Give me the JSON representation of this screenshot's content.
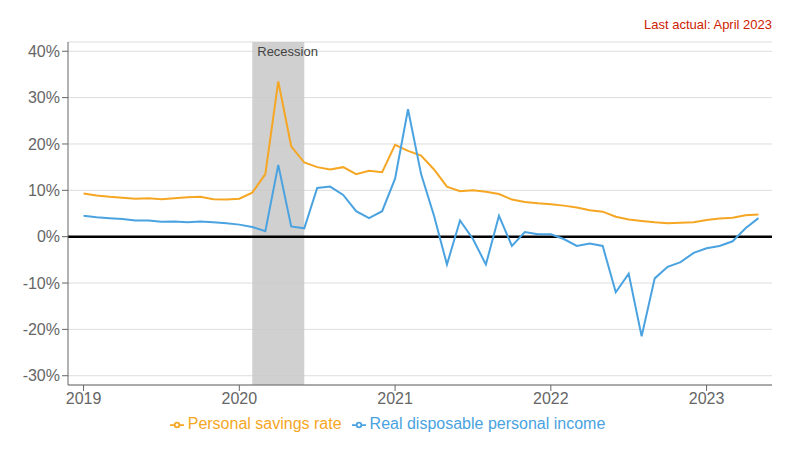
{
  "chart_data": {
    "type": "line",
    "annotations": [
      {
        "text": "Last actual:  April 2023",
        "color": "#CC2200"
      },
      {
        "text": "Recession",
        "x_start": 2020.083,
        "x_end": 2020.417
      }
    ],
    "hlines": [
      {
        "y": 0,
        "color": "#000000"
      }
    ],
    "x": [
      2019.0,
      2019.083,
      2019.167,
      2019.25,
      2019.333,
      2019.417,
      2019.5,
      2019.583,
      2019.667,
      2019.75,
      2019.833,
      2019.917,
      2020.0,
      2020.083,
      2020.167,
      2020.25,
      2020.333,
      2020.417,
      2020.5,
      2020.583,
      2020.667,
      2020.75,
      2020.833,
      2020.917,
      2021.0,
      2021.083,
      2021.167,
      2021.25,
      2021.333,
      2021.417,
      2021.5,
      2021.583,
      2021.667,
      2021.75,
      2021.833,
      2021.917,
      2022.0,
      2022.083,
      2022.167,
      2022.25,
      2022.333,
      2022.417,
      2022.5,
      2022.583,
      2022.667,
      2022.75,
      2022.833,
      2022.917,
      2023.0,
      2023.083,
      2023.167,
      2023.25,
      2023.333
    ],
    "series": [
      {
        "name": "Personal savings rate",
        "color": "#F5A623",
        "values": [
          9.3,
          8.9,
          8.6,
          8.4,
          8.2,
          8.3,
          8.1,
          8.3,
          8.5,
          8.6,
          8.1,
          8.0,
          8.2,
          9.5,
          13.5,
          33.5,
          19.5,
          16.0,
          15.0,
          14.5,
          15.0,
          13.5,
          14.2,
          13.9,
          19.8,
          18.5,
          17.5,
          14.5,
          10.8,
          9.8,
          10.0,
          9.7,
          9.2,
          8.0,
          7.5,
          7.2,
          7.0,
          6.7,
          6.3,
          5.7,
          5.4,
          4.3,
          3.7,
          3.4,
          3.1,
          2.9,
          3.0,
          3.1,
          3.6,
          3.9,
          4.1,
          4.6,
          4.8
        ]
      },
      {
        "name": "Real disposable personal income",
        "color": "#4AA3E0",
        "values": [
          4.5,
          4.2,
          4.0,
          3.8,
          3.5,
          3.5,
          3.2,
          3.3,
          3.1,
          3.3,
          3.1,
          2.9,
          2.6,
          2.1,
          1.2,
          15.5,
          2.2,
          1.8,
          10.5,
          10.8,
          9.0,
          5.5,
          4.0,
          5.5,
          12.5,
          27.5,
          13.5,
          4.5,
          -6.0,
          3.5,
          -0.5,
          -6.0,
          4.5,
          -2.0,
          1.0,
          0.5,
          0.5,
          -0.5,
          -2.0,
          -1.5,
          -2.0,
          -12.0,
          -8.0,
          -21.5,
          -9.0,
          -6.5,
          -5.5,
          -3.5,
          -2.5,
          -2.0,
          -1.0,
          1.8,
          4.0
        ]
      }
    ],
    "xlim": [
      2018.9,
      2023.42
    ],
    "xticks": [
      2019,
      2020,
      2021,
      2022,
      2023
    ],
    "ylim": [
      -32,
      42
    ],
    "yticks": [
      {
        "value": -30,
        "label": "-30%"
      },
      {
        "value": -20,
        "label": "-20%"
      },
      {
        "value": -10,
        "label": "-10%"
      },
      {
        "value": 0,
        "label": "0%"
      },
      {
        "value": 10,
        "label": "10%"
      },
      {
        "value": 20,
        "label": "20%"
      },
      {
        "value": 30,
        "label": "30%"
      },
      {
        "value": 40,
        "label": "40%"
      }
    ],
    "grid": true,
    "legend": "bottom"
  }
}
